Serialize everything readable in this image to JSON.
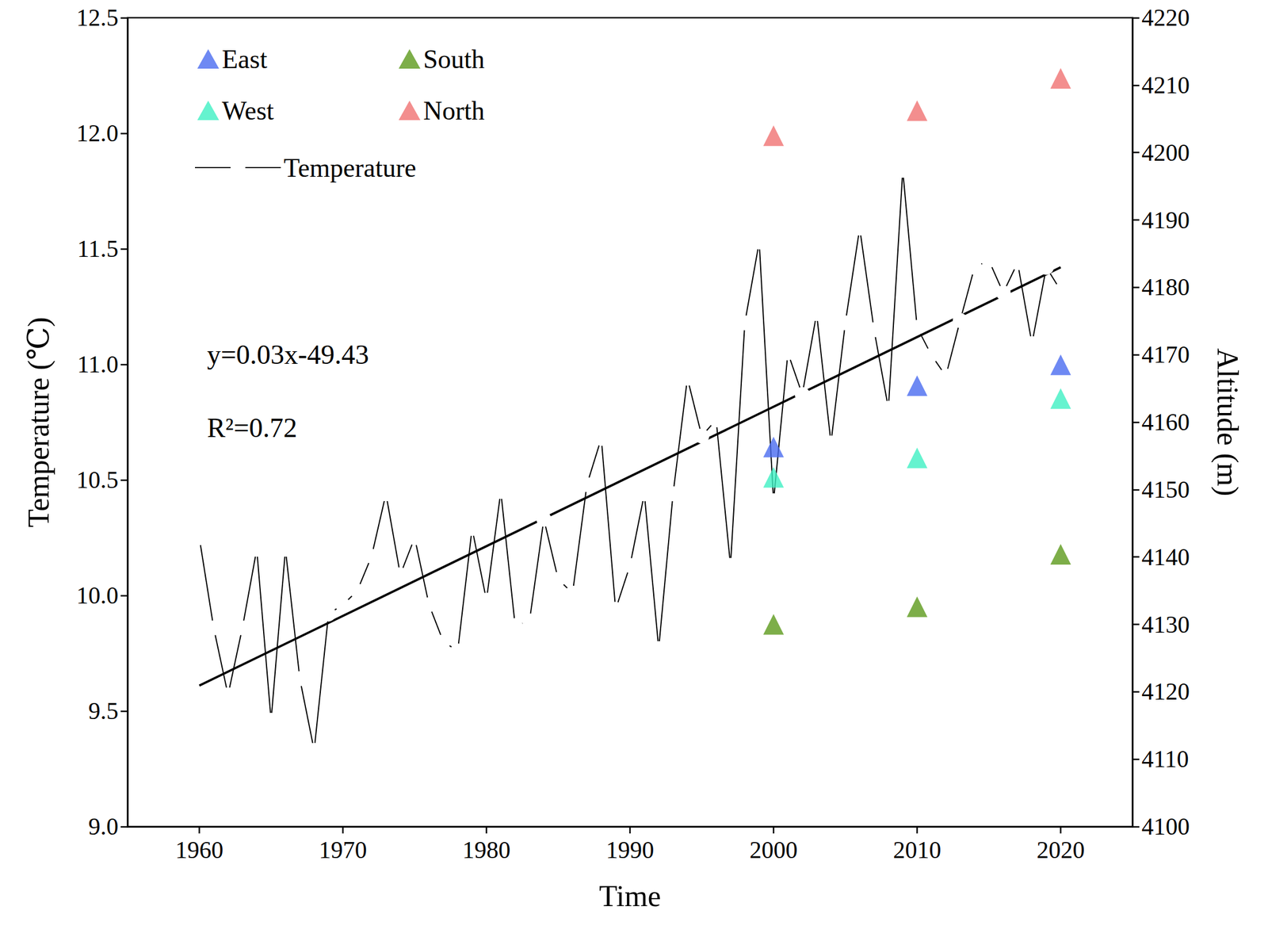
{
  "chart_data": {
    "type": "line",
    "x_label": "Time",
    "y_label": "Temperature (℃)",
    "y2_label": "Altitude (m)",
    "xlim": [
      1955,
      2025
    ],
    "xticks": [
      1960,
      1970,
      1980,
      1990,
      2000,
      2010,
      2020
    ],
    "ylim": [
      9.0,
      12.5
    ],
    "yticks": [
      {
        "value": 9,
        "label": "9.0"
      },
      9.5,
      {
        "value": 10,
        "label": "10.0"
      },
      10.5,
      {
        "value": 11,
        "label": "11.0"
      },
      11.5,
      {
        "value": 12,
        "label": "12.0"
      },
      12.5
    ],
    "y2lim": [
      4100,
      4220
    ],
    "y2ticks": [
      4100,
      4110,
      4120,
      4130,
      4140,
      4150,
      4160,
      4170,
      4180,
      4190,
      4200,
      4210,
      4220
    ],
    "grid": false,
    "legend": "upper left",
    "annotations": [
      "y=0.03x-49.43",
      "R²=0.72"
    ],
    "series": [
      {
        "name": "East",
        "type": "scatter",
        "marker": "triangle",
        "color": "#4a6cf0",
        "axis": "y2",
        "x": [
          2000,
          2010,
          2020
        ],
        "values": [
          4156.3,
          4165.4,
          4168.5
        ]
      },
      {
        "name": "West",
        "type": "scatter",
        "marker": "triangle",
        "color": "#3ff0c3",
        "axis": "y2",
        "x": [
          2000,
          2010,
          2020
        ],
        "values": [
          4151.8,
          4154.7,
          4163.5
        ]
      },
      {
        "name": "South",
        "type": "scatter",
        "marker": "triangle",
        "color": "#5c9a1c",
        "axis": "y2",
        "x": [
          2000,
          2010,
          2020
        ],
        "values": [
          4130.0,
          4132.6,
          4140.4
        ]
      },
      {
        "name": "North",
        "type": "scatter",
        "marker": "triangle",
        "color": "#f07272",
        "axis": "y2",
        "x": [
          2000,
          2010,
          2020
        ],
        "values": [
          4202.5,
          4206.2,
          4211.0
        ]
      },
      {
        "name": "Temperature",
        "type": "line",
        "marker": "open_circle",
        "color": "#000000",
        "x": [
          1960,
          1961,
          1962,
          1963,
          1964,
          1965,
          1966,
          1967,
          1968,
          1969,
          1970,
          1971,
          1972,
          1973,
          1974,
          1975,
          1976,
          1977,
          1978,
          1979,
          1980,
          1981,
          1982,
          1983,
          1984,
          1985,
          1986,
          1987,
          1988,
          1989,
          1990,
          1991,
          1992,
          1993,
          1994,
          1995,
          1996,
          1997,
          1998,
          1999,
          2000,
          2001,
          2002,
          2003,
          2004,
          2005,
          2006,
          2007,
          2008,
          2009,
          2010,
          2011,
          2012,
          2013,
          2014,
          2015,
          2016,
          2017,
          2018,
          2019,
          2020
        ],
        "values": [
          10.25,
          9.86,
          9.57,
          9.86,
          10.2,
          9.46,
          10.2,
          9.64,
          9.33,
          9.92,
          9.96,
          10.02,
          10.17,
          10.44,
          10.09,
          10.25,
          9.96,
          9.8,
          9.76,
          10.29,
          9.98,
          10.45,
          9.87,
          9.89,
          10.33,
          10.07,
          10.01,
          10.48,
          10.68,
          9.94,
          10.13,
          10.44,
          9.77,
          10.44,
          10.94,
          10.69,
          10.76,
          10.13,
          11.18,
          11.53,
          10.41,
          11.05,
          10.87,
          11.22,
          10.66,
          11.18,
          11.59,
          11.15,
          10.81,
          11.84,
          11.16,
          11.04,
          10.95,
          11.19,
          11.42,
          11.45,
          11.31,
          11.44,
          11.09,
          11.42,
          11.32
        ]
      },
      {
        "type": "line",
        "marker": "none",
        "line_style": "solid",
        "color": "#000000",
        "x": [
          1960,
          2020
        ],
        "values": [
          9.61,
          11.42
        ]
      }
    ]
  }
}
